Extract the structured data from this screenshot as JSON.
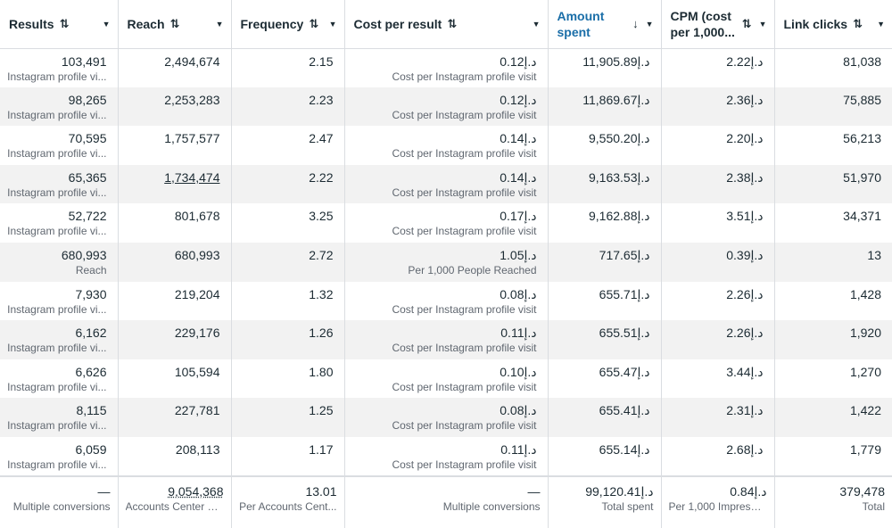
{
  "columns": [
    {
      "label": "Results",
      "sort": "⇅"
    },
    {
      "label": "Reach",
      "sort": "⇅"
    },
    {
      "label": "Frequency",
      "sort": "⇅"
    },
    {
      "label": "Cost per result",
      "sort": "⇅"
    },
    {
      "label": "Amount spent",
      "sort": "↓"
    },
    {
      "label": "CPM (cost per 1,000...",
      "sort": "⇅"
    },
    {
      "label": "Link clicks",
      "sort": "⇅"
    }
  ],
  "rows": [
    {
      "results": "103,491",
      "results_sub": "Instagram profile vi...",
      "reach": "2,494,674",
      "frequency": "2.15",
      "cpr": "0.12د.إ",
      "cpr_sub": "Cost per Instagram profile visit",
      "spent": "11,905.89د.إ",
      "cpm": "2.22د.إ",
      "clicks": "81,038"
    },
    {
      "results": "98,265",
      "results_sub": "Instagram profile vi...",
      "reach": "2,253,283",
      "frequency": "2.23",
      "cpr": "0.12د.إ",
      "cpr_sub": "Cost per Instagram profile visit",
      "spent": "11,869.67د.إ",
      "cpm": "2.36د.إ",
      "clicks": "75,885"
    },
    {
      "results": "70,595",
      "results_sub": "Instagram profile vi...",
      "reach": "1,757,577",
      "frequency": "2.47",
      "cpr": "0.14د.إ",
      "cpr_sub": "Cost per Instagram profile visit",
      "spent": "9,550.20د.إ",
      "cpm": "2.20د.إ",
      "clicks": "56,213"
    },
    {
      "results": "65,365",
      "results_sub": "Instagram profile vi...",
      "reach": "1,734,474",
      "frequency": "2.22",
      "cpr": "0.14د.إ",
      "cpr_sub": "Cost per Instagram profile visit",
      "spent": "9,163.53د.إ",
      "cpm": "2.38د.إ",
      "clicks": "51,970"
    },
    {
      "results": "52,722",
      "results_sub": "Instagram profile vi...",
      "reach": "801,678",
      "frequency": "3.25",
      "cpr": "0.17د.إ",
      "cpr_sub": "Cost per Instagram profile visit",
      "spent": "9,162.88د.إ",
      "cpm": "3.51د.إ",
      "clicks": "34,371"
    },
    {
      "results": "680,993",
      "results_sub": "Reach",
      "reach": "680,993",
      "frequency": "2.72",
      "cpr": "1.05د.إ",
      "cpr_sub": "Per 1,000 People Reached",
      "spent": "717.65د.إ",
      "cpm": "0.39د.إ",
      "clicks": "13"
    },
    {
      "results": "7,930",
      "results_sub": "Instagram profile vi...",
      "reach": "219,204",
      "frequency": "1.32",
      "cpr": "0.08د.إ",
      "cpr_sub": "Cost per Instagram profile visit",
      "spent": "655.71د.إ",
      "cpm": "2.26د.إ",
      "clicks": "1,428"
    },
    {
      "results": "6,162",
      "results_sub": "Instagram profile vi...",
      "reach": "229,176",
      "frequency": "1.26",
      "cpr": "0.11د.إ",
      "cpr_sub": "Cost per Instagram profile visit",
      "spent": "655.51د.إ",
      "cpm": "2.26د.إ",
      "clicks": "1,920"
    },
    {
      "results": "6,626",
      "results_sub": "Instagram profile vi...",
      "reach": "105,594",
      "frequency": "1.80",
      "cpr": "0.10د.إ",
      "cpr_sub": "Cost per Instagram profile visit",
      "spent": "655.47د.إ",
      "cpm": "3.44د.إ",
      "clicks": "1,270"
    },
    {
      "results": "8,115",
      "results_sub": "Instagram profile vi...",
      "reach": "227,781",
      "frequency": "1.25",
      "cpr": "0.08د.إ",
      "cpr_sub": "Cost per Instagram profile visit",
      "spent": "655.41د.إ",
      "cpm": "2.31د.إ",
      "clicks": "1,422"
    },
    {
      "results": "6,059",
      "results_sub": "Instagram profile vi...",
      "reach": "208,113",
      "frequency": "1.17",
      "cpr": "0.11د.إ",
      "cpr_sub": "Cost per Instagram profile visit",
      "spent": "655.14د.إ",
      "cpm": "2.68د.إ",
      "clicks": "1,779"
    }
  ],
  "totals": {
    "results": "—",
    "results_sub": "Multiple conversions",
    "reach": "9,054,368",
    "reach_sub": "Accounts Center ac...",
    "frequency": "13.01",
    "frequency_sub": "Per Accounts Cent...",
    "cpr": "—",
    "cpr_sub": "Multiple conversions",
    "spent": "99,120.41د.إ",
    "spent_sub": "Total spent",
    "cpm": "0.84د.إ",
    "cpm_sub": "Per 1,000 Impressi...",
    "clicks": "379,478",
    "clicks_sub": "Total"
  },
  "icons": {
    "dropdown": "chevron-down-icon",
    "sort": "sort-icon"
  },
  "colors": {
    "active_header": "#1a6ea8",
    "stripe": "#f2f2f2",
    "border": "#dadde1"
  }
}
